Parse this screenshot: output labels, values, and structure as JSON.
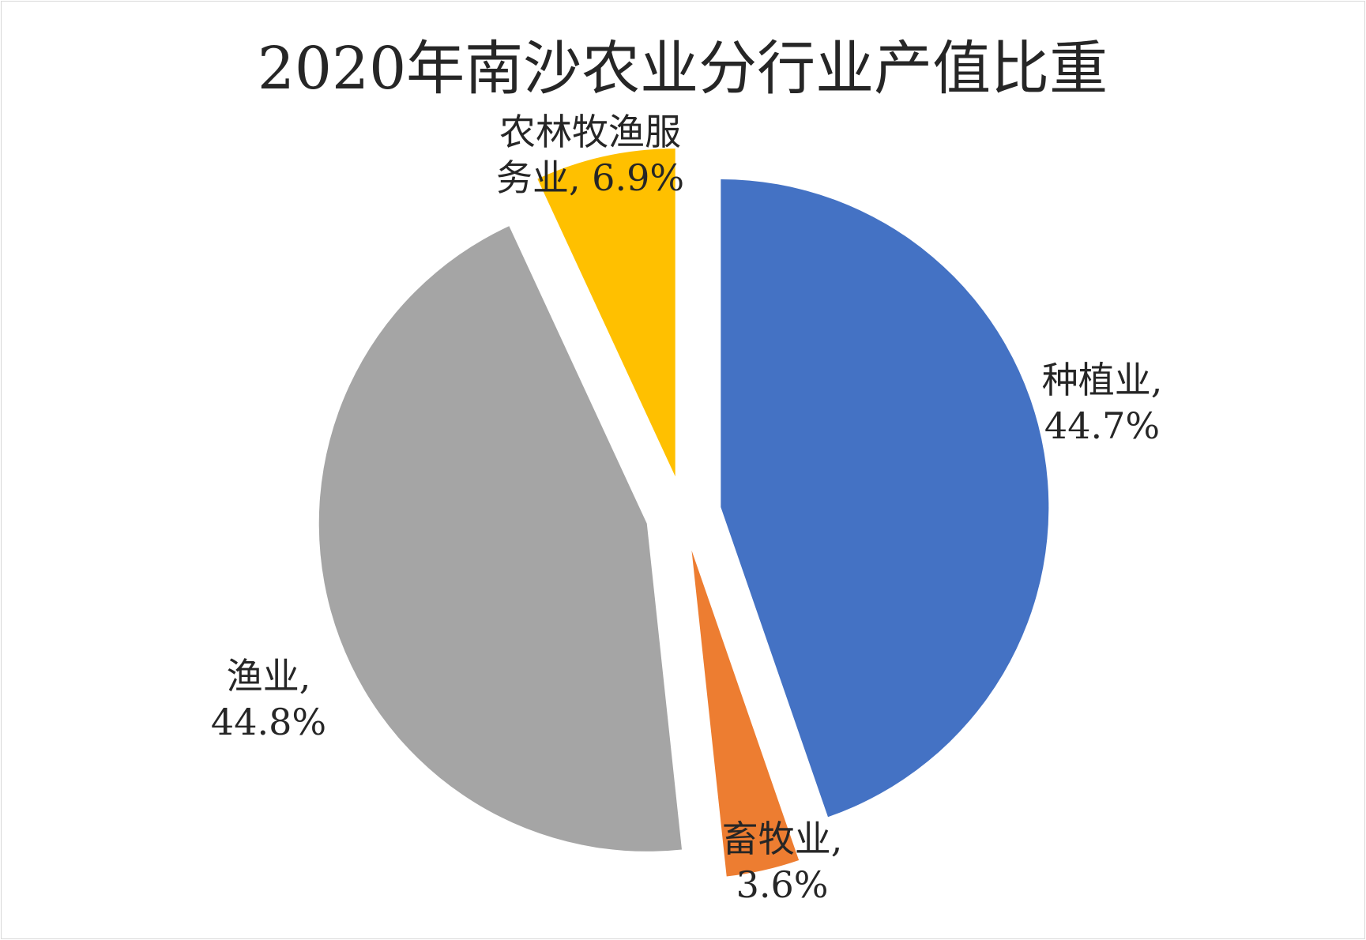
{
  "chart_data": {
    "type": "pie",
    "title": "2020年南沙农业分行业产值比重",
    "unit": "%",
    "slices": [
      {
        "name": "种植业",
        "value": 44.7,
        "label_lines": [
          "种植业,",
          "44.7%"
        ],
        "color": "#4472C4"
      },
      {
        "name": "畜牧业",
        "value": 3.6,
        "label_lines": [
          "畜牧业,",
          "3.6%"
        ],
        "color": "#ED7D31"
      },
      {
        "name": "渔业",
        "value": 44.8,
        "label_lines": [
          "渔业,",
          "44.8%"
        ],
        "color": "#A5A5A5"
      },
      {
        "name": "农林牧渔服务业",
        "value": 6.9,
        "label_lines": [
          "农林牧渔服",
          "务业, 6.9%"
        ],
        "color": "#FFC000"
      }
    ],
    "legend": "none",
    "exploded": true
  }
}
